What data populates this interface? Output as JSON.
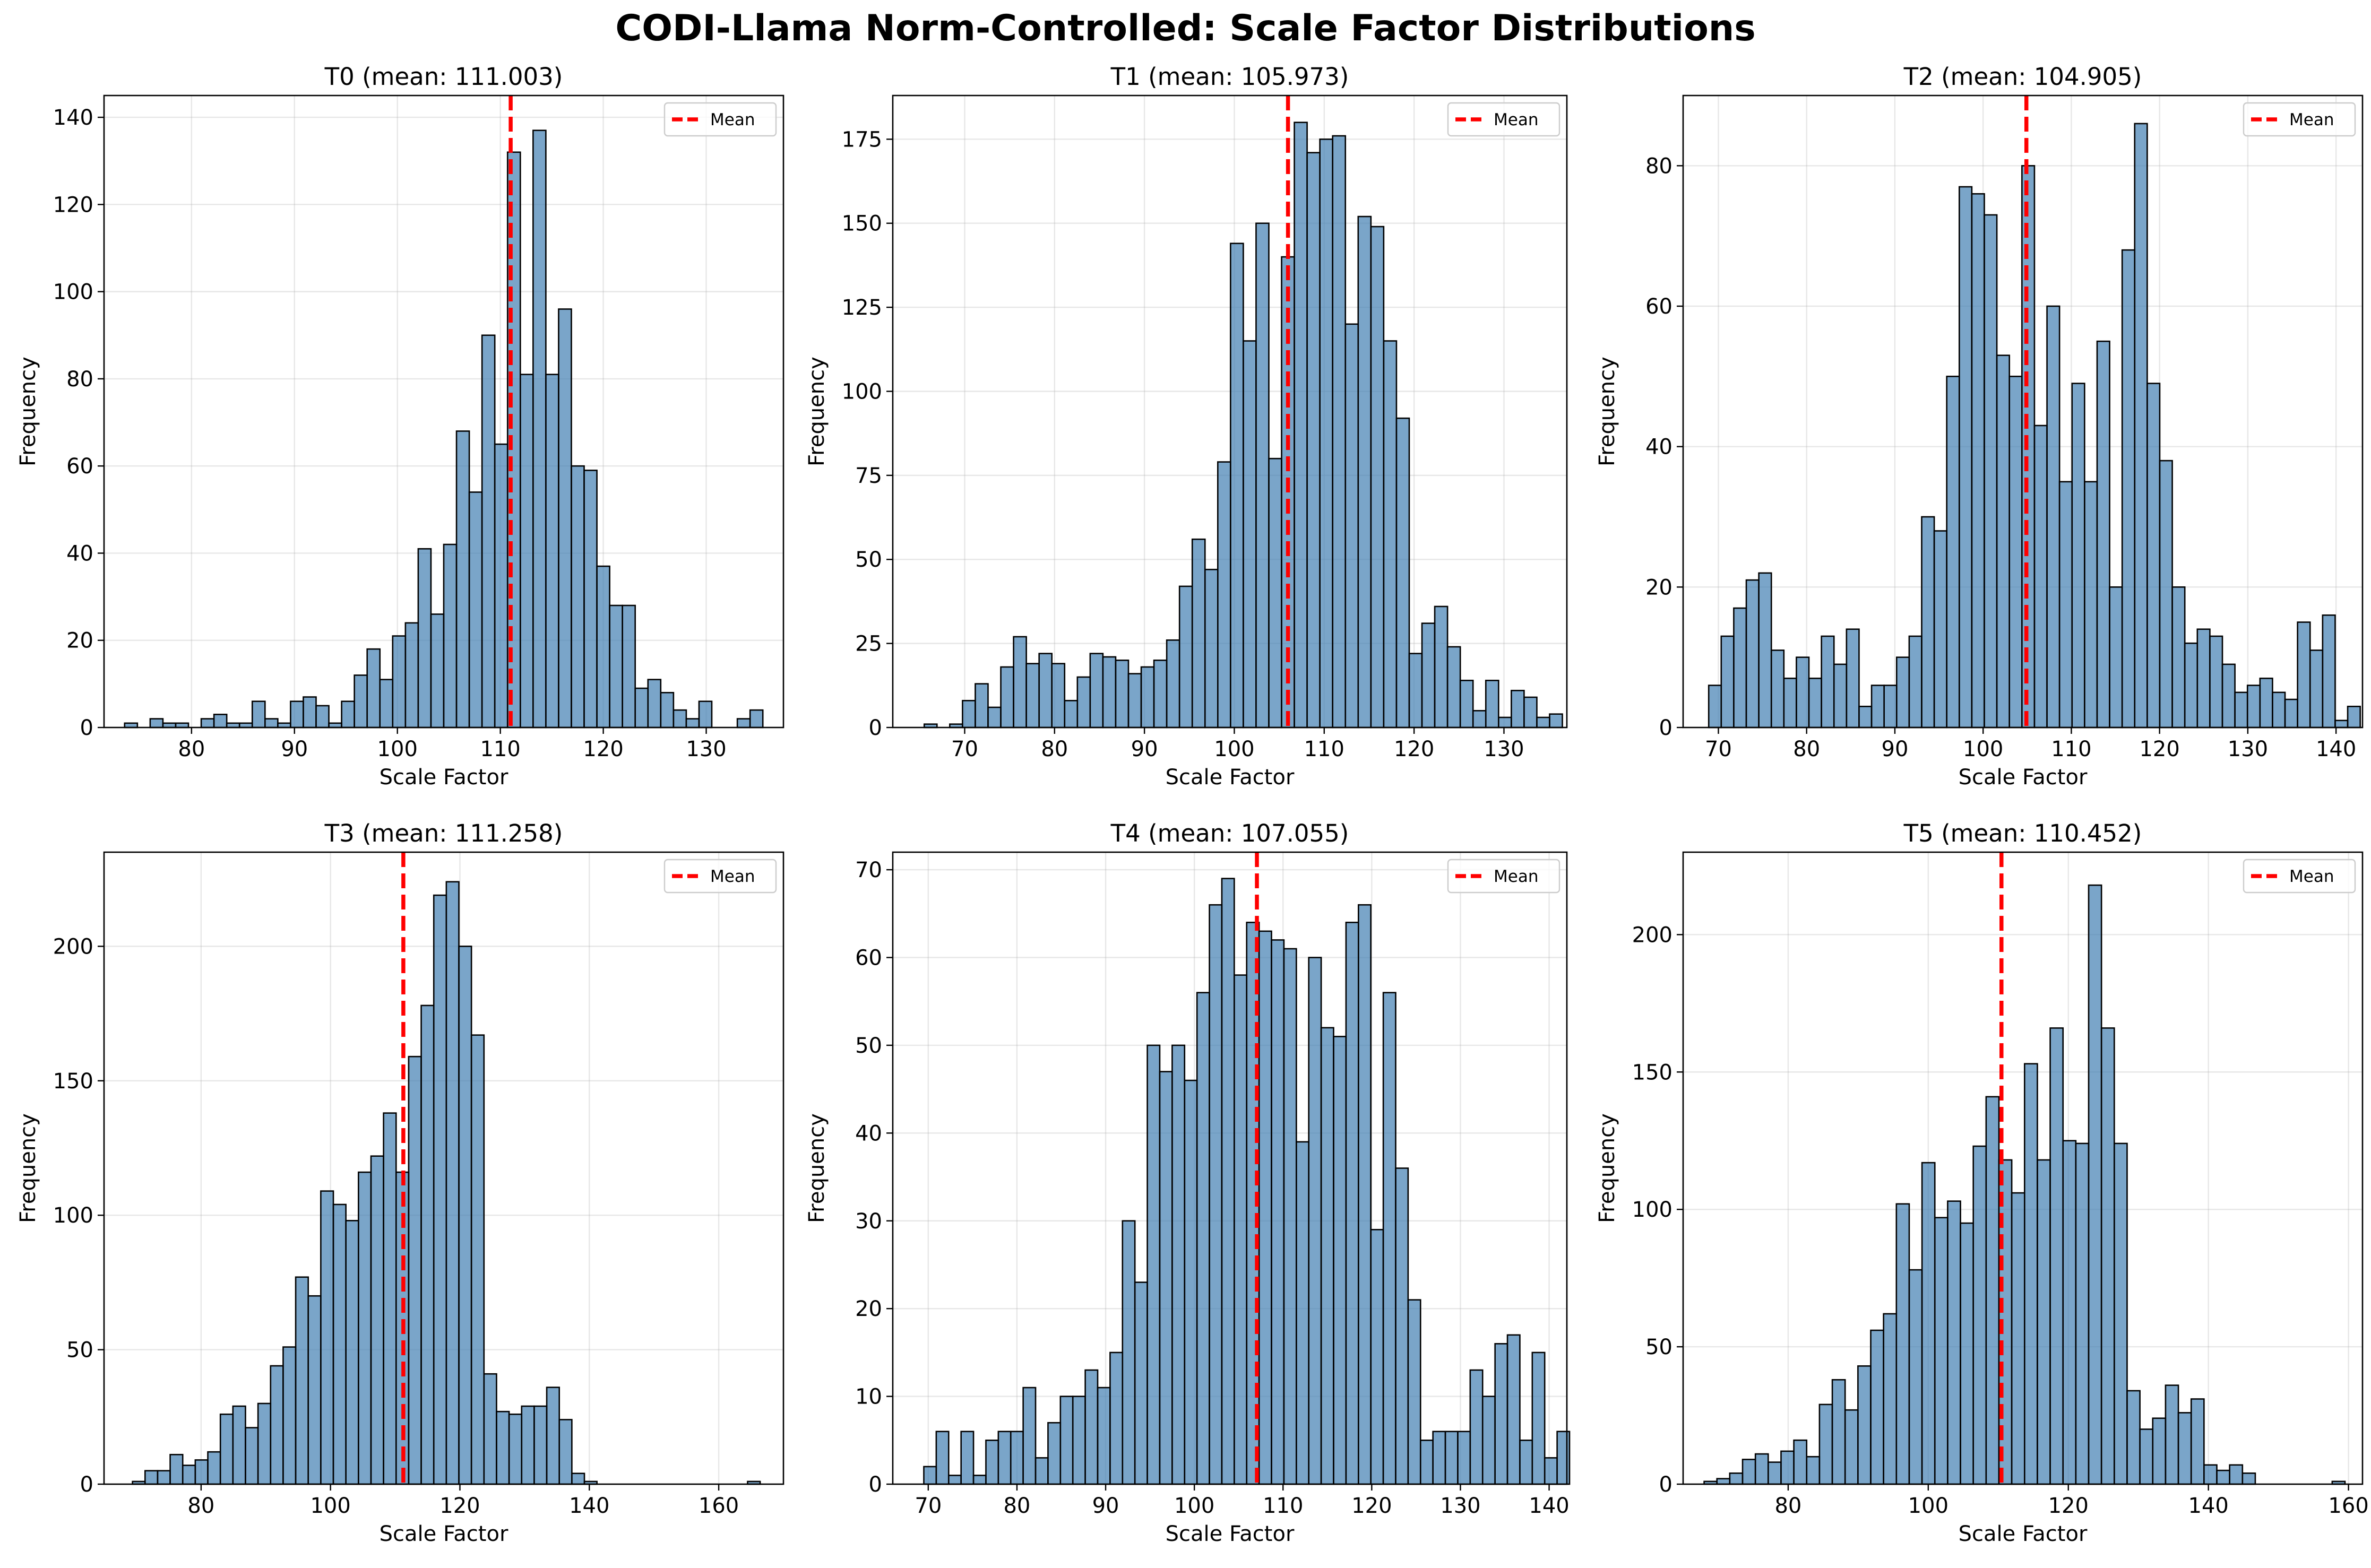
{
  "title": "CODI-Llama Norm-Controlled: Scale Factor Distributions",
  "chart_data": [
    {
      "type": "bar",
      "title": "T0 (mean: 111.003)",
      "xlabel": "Scale Factor",
      "ylabel": "Frequency",
      "legend": {
        "label": "Mean",
        "placement": "upper right"
      },
      "grid": true,
      "mean": 111.003,
      "bin_start": 73.5,
      "bin_width": 1.24,
      "values": [
        1,
        0,
        2,
        1,
        1,
        0,
        2,
        3,
        1,
        1,
        6,
        2,
        1,
        6,
        7,
        5,
        1,
        6,
        12,
        18,
        11,
        21,
        24,
        41,
        26,
        42,
        68,
        54,
        90,
        65,
        132,
        81,
        137,
        81,
        96,
        60,
        59,
        37,
        28,
        28,
        9,
        11,
        8,
        4,
        2,
        6,
        0,
        0,
        2,
        4
      ],
      "xlim": [
        71.5,
        137.5
      ],
      "ylim": [
        0,
        145
      ],
      "xticks": [
        80,
        90,
        100,
        110,
        120,
        130
      ],
      "yticks": [
        0,
        20,
        40,
        60,
        80,
        100,
        120,
        140
      ]
    },
    {
      "type": "bar",
      "title": "T1 (mean: 105.973)",
      "xlabel": "Scale Factor",
      "ylabel": "Frequency",
      "legend": {
        "label": "Mean",
        "placement": "upper right"
      },
      "grid": true,
      "mean": 105.973,
      "bin_start": 65.5,
      "bin_width": 1.42,
      "values": [
        1,
        0,
        1,
        8,
        13,
        6,
        18,
        27,
        19,
        22,
        19,
        8,
        15,
        22,
        21,
        20,
        16,
        18,
        20,
        26,
        42,
        56,
        47,
        79,
        144,
        115,
        150,
        80,
        140,
        180,
        171,
        175,
        176,
        120,
        152,
        149,
        115,
        92,
        22,
        31,
        36,
        24,
        14,
        5,
        14,
        3,
        11,
        9,
        3,
        4
      ],
      "xlim": [
        62,
        137
      ],
      "ylim": [
        0,
        188
      ],
      "xticks": [
        70,
        80,
        90,
        100,
        110,
        120,
        130
      ],
      "yticks": [
        0,
        25,
        50,
        75,
        100,
        125,
        150,
        175
      ]
    },
    {
      "type": "bar",
      "title": "T2 (mean: 104.905)",
      "xlabel": "Scale Factor",
      "ylabel": "Frequency",
      "legend": {
        "label": "Mean",
        "placement": "upper right"
      },
      "grid": true,
      "mean": 104.905,
      "bin_start": 68.9,
      "bin_width": 1.42,
      "values": [
        6,
        13,
        17,
        21,
        22,
        11,
        7,
        10,
        7,
        13,
        9,
        14,
        3,
        6,
        6,
        10,
        13,
        30,
        28,
        50,
        77,
        76,
        73,
        53,
        50,
        80,
        43,
        60,
        35,
        49,
        35,
        55,
        20,
        68,
        86,
        49,
        38,
        20,
        12,
        14,
        13,
        9,
        5,
        6,
        7,
        5,
        4,
        15,
        11,
        16,
        1,
        3
      ],
      "xlim": [
        66,
        143
      ],
      "ylim": [
        0,
        90
      ],
      "xticks": [
        70,
        80,
        90,
        100,
        110,
        120,
        130,
        140
      ],
      "yticks": [
        0,
        20,
        40,
        60,
        80
      ]
    },
    {
      "type": "bar",
      "title": "T3 (mean: 111.258)",
      "xlabel": "Scale Factor",
      "ylabel": "Frequency",
      "legend": {
        "label": "Mean",
        "placement": "upper right"
      },
      "grid": true,
      "mean": 111.258,
      "bin_start": 69.4,
      "bin_width": 1.94,
      "values": [
        1,
        5,
        5,
        11,
        7,
        9,
        12,
        26,
        29,
        21,
        30,
        44,
        51,
        77,
        70,
        109,
        104,
        98,
        116,
        122,
        138,
        116,
        159,
        178,
        219,
        224,
        200,
        167,
        41,
        27,
        26,
        29,
        29,
        36,
        24,
        4,
        1,
        0,
        0,
        0,
        0,
        0,
        0,
        0,
        0,
        0,
        0,
        0,
        0,
        1
      ],
      "xlim": [
        65,
        170
      ],
      "ylim": [
        0,
        235
      ],
      "xticks": [
        80,
        100,
        120,
        140,
        160
      ],
      "yticks": [
        0,
        50,
        100,
        150,
        200
      ]
    },
    {
      "type": "bar",
      "title": "T4 (mean: 107.055)",
      "xlabel": "Scale Factor",
      "ylabel": "Frequency",
      "legend": {
        "label": "Mean",
        "placement": "upper right"
      },
      "grid": true,
      "mean": 107.055,
      "bin_start": 69.5,
      "bin_width": 1.4,
      "values": [
        2,
        6,
        1,
        6,
        1,
        5,
        6,
        6,
        11,
        3,
        7,
        10,
        10,
        13,
        11,
        15,
        30,
        23,
        50,
        47,
        50,
        46,
        56,
        66,
        69,
        58,
        64,
        63,
        62,
        61,
        39,
        60,
        52,
        51,
        64,
        66,
        29,
        56,
        36,
        21,
        5,
        6,
        6,
        6,
        13,
        10,
        16,
        17,
        5,
        15,
        3,
        6
      ],
      "xlim": [
        66,
        142
      ],
      "ylim": [
        0,
        72
      ],
      "xticks": [
        70,
        80,
        90,
        100,
        110,
        120,
        130,
        140
      ],
      "yticks": [
        0,
        10,
        20,
        30,
        40,
        50,
        60,
        70
      ]
    },
    {
      "type": "bar",
      "title": "T5 (mean: 110.452)",
      "xlabel": "Scale Factor",
      "ylabel": "Frequency",
      "legend": {
        "label": "Mean",
        "placement": "upper right"
      },
      "grid": true,
      "mean": 110.452,
      "bin_start": 68.0,
      "bin_width": 1.83,
      "values": [
        1,
        2,
        4,
        9,
        11,
        8,
        12,
        16,
        10,
        29,
        38,
        27,
        43,
        56,
        62,
        102,
        78,
        117,
        97,
        103,
        95,
        123,
        141,
        118,
        106,
        153,
        118,
        166,
        125,
        124,
        218,
        166,
        124,
        34,
        20,
        24,
        36,
        26,
        31,
        7,
        5,
        7,
        4,
        0,
        0,
        0,
        0,
        0,
        0,
        1
      ],
      "xlim": [
        65,
        162
      ],
      "ylim": [
        0,
        230
      ],
      "xticks": [
        80,
        100,
        120,
        140,
        160
      ],
      "yticks": [
        0,
        50,
        100,
        150,
        200
      ]
    }
  ]
}
